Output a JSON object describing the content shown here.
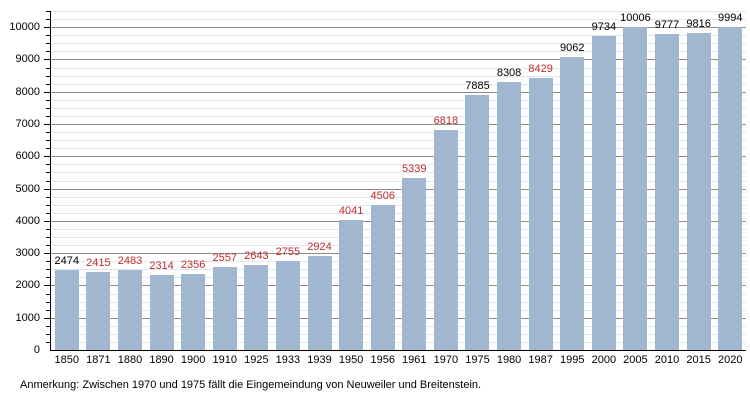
{
  "chart_data": {
    "type": "bar",
    "title": "",
    "xlabel": "",
    "ylabel": "",
    "ylim": [
      0,
      10500
    ],
    "major_tick_interval": 1000,
    "minor_tick_interval": 250,
    "grid": "major and minor horizontal gridlines",
    "legend_position": "none",
    "categories": [
      "1850",
      "1871",
      "1880",
      "1890",
      "1900",
      "1910",
      "1925",
      "1933",
      "1939",
      "1950",
      "1956",
      "1961",
      "1970",
      "1975",
      "1980",
      "1987",
      "1995",
      "2000",
      "2005",
      "2010",
      "2015",
      "2020"
    ],
    "values": [
      2474,
      2415,
      2483,
      2314,
      2356,
      2557,
      2643,
      2755,
      2924,
      4041,
      4506,
      5339,
      6818,
      7885,
      8308,
      8429,
      9062,
      9734,
      10006,
      9777,
      9816,
      9994
    ],
    "value_label_colors": [
      "black",
      "red",
      "red",
      "red",
      "red",
      "red",
      "red",
      "red",
      "red",
      "red",
      "red",
      "red",
      "red",
      "black",
      "black",
      "red",
      "black",
      "black",
      "black",
      "black",
      "black",
      "black"
    ],
    "yticks": [
      0,
      1000,
      2000,
      3000,
      4000,
      5000,
      6000,
      7000,
      8000,
      9000,
      10000
    ],
    "note": "Anmerkung: Zwischen 1970 und 1975 fällt die Eingemeindung von Neuweiler und Breitenstein.",
    "colors": {
      "bar": "#a1b7cf",
      "value_label_black": "#000000",
      "value_label_red": "#c32b2b",
      "major_grid": "#8c8c8c",
      "minor_grid": "#dfe8f2",
      "axis": "#000000"
    }
  }
}
